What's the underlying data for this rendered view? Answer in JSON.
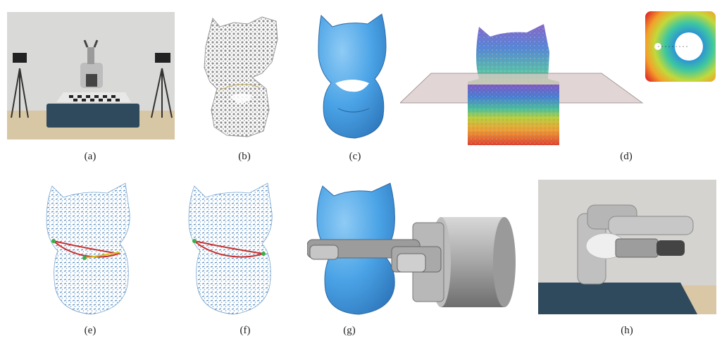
{
  "figure": {
    "panels": [
      {
        "id": "a",
        "label": "(a)",
        "content": "robot-workcell-photo"
      },
      {
        "id": "b",
        "label": "(b)",
        "content": "raw-point-cloud"
      },
      {
        "id": "c",
        "label": "(c)",
        "content": "reconstructed-mesh"
      },
      {
        "id": "d",
        "label": "(d)",
        "content": "distance-field-with-plane-and-parameterization"
      },
      {
        "id": "e",
        "label": "(e)",
        "content": "point-cloud-with-grasp-curves"
      },
      {
        "id": "f",
        "label": "(f)",
        "content": "point-cloud-with-grasp-curves"
      },
      {
        "id": "g",
        "label": "(g)",
        "content": "gripper-grasp-on-mesh"
      },
      {
        "id": "h",
        "label": "(h)",
        "content": "robot-grasp-photo"
      }
    ],
    "colors": {
      "mesh_blue": "#4aa3e6",
      "point_gray": "#9a9a9a",
      "point_blue": "#6a9cc8",
      "curve_red": "#c83232",
      "curve_yellow": "#d8c020",
      "curve_green": "#3cae4a",
      "gripper_gray": "#a8a8a8",
      "table_blue": "#2e4a5c"
    }
  }
}
